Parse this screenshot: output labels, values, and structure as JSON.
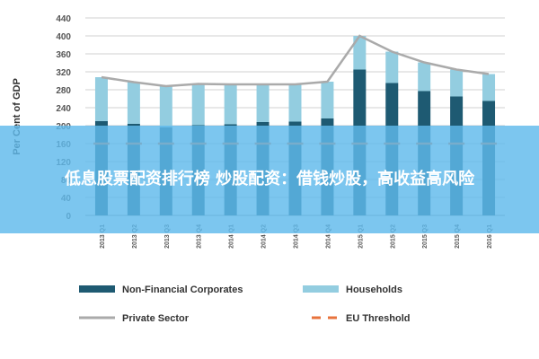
{
  "chart_data": {
    "type": "bar",
    "stacked": true,
    "ylabel": "Per Cent of GDP",
    "ylim": [
      0,
      440
    ],
    "yticks": [
      0,
      40,
      80,
      120,
      160,
      200,
      240,
      280,
      320,
      360,
      400,
      440
    ],
    "categories": [
      "2013 Q1",
      "2013 Q2",
      "2013 Q3",
      "2013 Q4",
      "2014 Q1",
      "2014 Q2",
      "2014 Q3",
      "2014 Q4",
      "2015 Q1",
      "2015 Q2",
      "2015 Q3",
      "2015 Q4",
      "2016 Q1"
    ],
    "series": [
      {
        "name": "Non-Financial Corporates",
        "color": "#1e5a72",
        "values": [
          210,
          204,
          196,
          201,
          203,
          208,
          209,
          216,
          325,
          295,
          277,
          265,
          255
        ]
      },
      {
        "name": "Households",
        "color": "#93cde0",
        "values": [
          98,
          93,
          92,
          92,
          89,
          84,
          83,
          82,
          75,
          70,
          64,
          60,
          60
        ]
      }
    ],
    "lines": [
      {
        "name": "Private Sector",
        "color": "#aaaaaa",
        "values": [
          308,
          297,
          288,
          293,
          292,
          292,
          292,
          298,
          400,
          365,
          341,
          325,
          315
        ]
      },
      {
        "name": "EU Threshold",
        "color": "#e8733c",
        "dashed": true,
        "values": [
          160,
          160,
          160,
          160,
          160,
          160,
          160,
          160,
          160,
          160,
          160,
          160,
          160
        ]
      }
    ],
    "grid": true,
    "legend_position": "bottom"
  },
  "banner": {
    "text": "低息股票配资排行榜 炒股配资：借钱炒股，高收益高风险"
  }
}
